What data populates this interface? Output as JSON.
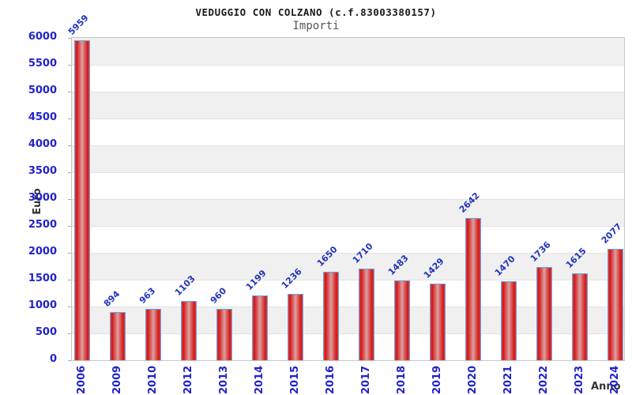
{
  "chart_data": {
    "type": "bar",
    "title": "VEDUGGIO CON COLZANO (c.f.83003380157)",
    "subtitle": "Importi",
    "xlabel": "Anno",
    "ylabel": "Euro",
    "categories": [
      "2006",
      "2009",
      "2010",
      "2012",
      "2013",
      "2014",
      "2015",
      "2016",
      "2017",
      "2018",
      "2019",
      "2020",
      "2021",
      "2022",
      "2023",
      "2024"
    ],
    "values": [
      5959,
      894,
      963,
      1103,
      960,
      1199,
      1236,
      1650,
      1710,
      1483,
      1429,
      2642,
      1470,
      1736,
      1615,
      2077
    ],
    "ylim": [
      0,
      6000
    ],
    "ytick_step": 500,
    "grid": "horizontal-bands",
    "legend_position": "none",
    "colors": {
      "bar_fill": "#dd2222",
      "bar_border": "#62a4e0",
      "tick_label": "#2222cc",
      "value_label": "#2233bb",
      "axis_title": "#333333",
      "band_gray": "#f0f0f0",
      "band_white": "#ffffff",
      "plot_border": "#c6c6c6"
    }
  }
}
